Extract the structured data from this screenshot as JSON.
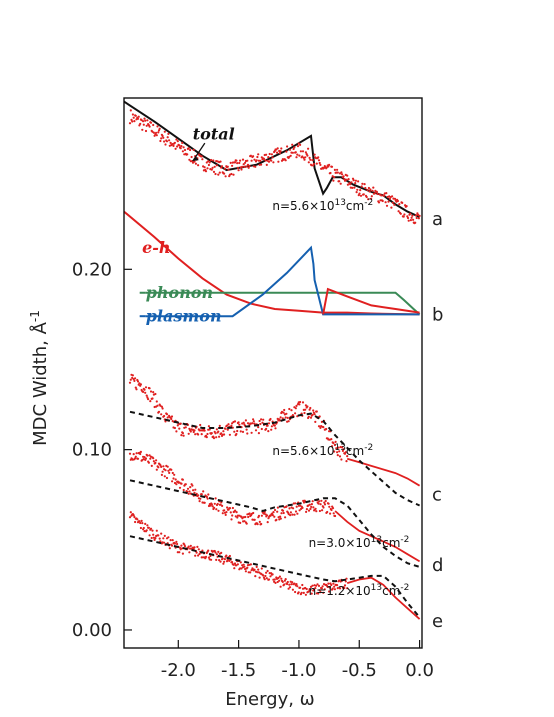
{
  "chart_data": {
    "type": "line",
    "xlabel": "Energy, ω",
    "ylabel": "MDC Width, Å",
    "ylabel_sup": "-1",
    "xlim": [
      -2.45,
      0.02
    ],
    "ylim": [
      -0.01,
      0.295
    ],
    "x_ticks": [
      -2.0,
      -1.5,
      -1.0,
      -0.5,
      0.0
    ],
    "x_tick_labels": [
      "-2.0",
      "-1.5",
      "-1.0",
      "-0.5",
      "0.0"
    ],
    "y_ticks": [
      0.0,
      0.1,
      0.2
    ],
    "y_tick_labels": [
      "0.00",
      "0.10",
      "0.20"
    ],
    "grid": false,
    "panels": [
      {
        "id": "a",
        "label": "a",
        "y": 0.228
      },
      {
        "id": "b",
        "label": "b",
        "y": 0.175
      },
      {
        "id": "c",
        "label": "c",
        "y": 0.075
      },
      {
        "id": "d",
        "label": "d",
        "y": 0.036
      },
      {
        "id": "e",
        "label": "e",
        "y": 0.005
      }
    ],
    "annotations": [
      {
        "id": "dens-a",
        "base": "n=5.6×10",
        "exp": "13",
        "unit": "cm",
        "unit_exp": "-2",
        "x": -1.22,
        "y": 0.233
      },
      {
        "id": "dens-c",
        "base": "n=5.6×10",
        "exp": "13",
        "unit": "cm",
        "unit_exp": "-2",
        "x": -1.22,
        "y": 0.097
      },
      {
        "id": "dens-d",
        "base": "n=3.0×10",
        "exp": "13",
        "unit": "cm",
        "unit_exp": "-2",
        "x": -0.92,
        "y": 0.046
      },
      {
        "id": "dens-e",
        "base": "n=1.2×10",
        "exp": "13",
        "unit": "cm",
        "unit_exp": "-2",
        "x": -0.92,
        "y": 0.0195
      }
    ],
    "series": [
      {
        "id": "total",
        "name": "total",
        "kind": "line",
        "color": "#111111",
        "label_pos": [
          -1.88,
          0.272
        ],
        "x": [
          -2.45,
          -2.2,
          -1.8,
          -1.6,
          -1.35,
          -1.1,
          -0.9,
          -0.87,
          -0.8,
          -0.77,
          -0.72,
          -0.65,
          -0.55,
          -0.4,
          -0.3,
          -0.2,
          -0.1,
          0.0
        ],
        "y": [
          0.293,
          0.282,
          0.263,
          0.255,
          0.258,
          0.266,
          0.274,
          0.256,
          0.242,
          0.245,
          0.251,
          0.251,
          0.247,
          0.243,
          0.241,
          0.236,
          0.232,
          0.229
        ]
      },
      {
        "id": "data-a",
        "name": "",
        "kind": "points",
        "color": "#e02020",
        "x": [
          -2.4,
          -2.2,
          -2.0,
          -1.8,
          -1.6,
          -1.4,
          -1.2,
          -1.0,
          -0.9,
          -0.8,
          -0.7,
          -0.6,
          -0.5,
          -0.4,
          -0.3,
          -0.2,
          -0.1,
          0.0
        ],
        "y": [
          0.285,
          0.277,
          0.268,
          0.259,
          0.255,
          0.259,
          0.263,
          0.266,
          0.262,
          0.256,
          0.252,
          0.249,
          0.245,
          0.242,
          0.24,
          0.236,
          0.231,
          0.228
        ],
        "noise": 0.004
      },
      {
        "id": "eh",
        "name": "e-h",
        "kind": "line",
        "color": "#e02020",
        "label_pos": [
          -2.3,
          0.209
        ],
        "x": [
          -2.45,
          -2.2,
          -2.0,
          -1.8,
          -1.6,
          -1.4,
          -1.2,
          -1.0,
          -0.8,
          -0.6,
          -0.4,
          -0.2,
          0.0
        ],
        "y": [
          0.232,
          0.218,
          0.206,
          0.195,
          0.186,
          0.181,
          0.178,
          0.177,
          0.176,
          0.176,
          0.1755,
          0.1752,
          0.175
        ]
      },
      {
        "id": "phonon",
        "name": "phonon",
        "kind": "line",
        "color": "#3a8a56",
        "label_pos": [
          -2.27,
          0.184
        ],
        "x": [
          -2.27,
          -0.2,
          -0.13,
          -0.05,
          0.0
        ],
        "y": [
          0.187,
          0.187,
          0.183,
          0.178,
          0.175
        ]
      },
      {
        "id": "plasmon",
        "name": "plasmon",
        "kind": "line",
        "color": "#1560b0",
        "label_pos": [
          -2.27,
          0.171
        ],
        "x": [
          -2.27,
          -1.55,
          -1.3,
          -1.1,
          -0.9,
          -0.88,
          -0.87,
          -0.8,
          -0.6,
          0.0
        ],
        "y": [
          0.174,
          0.174,
          0.186,
          0.198,
          0.212,
          0.203,
          0.194,
          0.175,
          0.175,
          0.175
        ]
      },
      {
        "id": "eh-jump",
        "name": "",
        "kind": "line",
        "color": "#e02020",
        "x": [
          -0.8,
          -0.76,
          -0.6,
          -0.4,
          -0.2,
          0.0
        ],
        "y": [
          0.175,
          0.189,
          0.185,
          0.18,
          0.178,
          0.176
        ]
      },
      {
        "id": "data-c",
        "name": "",
        "kind": "points+line",
        "color": "#e02020",
        "x": [
          -2.4,
          -2.3,
          -2.2,
          -2.1,
          -2.0,
          -1.9,
          -1.8,
          -1.7,
          -1.6,
          -1.5,
          -1.4,
          -1.3,
          -1.2,
          -1.1,
          -1.0,
          -0.9,
          -0.8,
          -0.7,
          -0.6,
          -0.5,
          -0.4,
          -0.3,
          -0.2,
          -0.1,
          0.0
        ],
        "y": [
          0.138,
          0.136,
          0.128,
          0.117,
          0.112,
          0.111,
          0.11,
          0.11,
          0.111,
          0.112,
          0.113,
          0.113,
          0.115,
          0.119,
          0.123,
          0.121,
          0.113,
          0.102,
          0.095,
          0.093,
          0.091,
          0.089,
          0.087,
          0.084,
          0.08
        ],
        "noise": 0.004,
        "line_from": -0.6
      },
      {
        "id": "model-c",
        "name": "",
        "kind": "dashed",
        "color": "#111111",
        "x": [
          -2.4,
          -2.2,
          -2.0,
          -1.8,
          -1.6,
          -1.4,
          -1.2,
          -1.0,
          -0.9,
          -0.8,
          -0.7,
          -0.6,
          -0.5,
          -0.4,
          -0.3,
          -0.2,
          -0.1,
          0.0
        ],
        "y": [
          0.121,
          0.118,
          0.115,
          0.112,
          0.112,
          0.113,
          0.115,
          0.119,
          0.12,
          0.116,
          0.108,
          0.101,
          0.094,
          0.088,
          0.082,
          0.076,
          0.072,
          0.069
        ]
      },
      {
        "id": "data-d",
        "name": "",
        "kind": "points+line",
        "color": "#e02020",
        "x": [
          -2.4,
          -2.3,
          -2.2,
          -2.1,
          -2.0,
          -1.9,
          -1.8,
          -1.7,
          -1.6,
          -1.5,
          -1.4,
          -1.3,
          -1.2,
          -1.1,
          -1.0,
          -0.9,
          -0.8,
          -0.7,
          -0.6,
          -0.5,
          -0.4,
          -0.3,
          -0.2,
          -0.1,
          0.0
        ],
        "y": [
          0.098,
          0.096,
          0.092,
          0.088,
          0.083,
          0.078,
          0.074,
          0.07,
          0.066,
          0.063,
          0.062,
          0.062,
          0.064,
          0.066,
          0.068,
          0.069,
          0.069,
          0.066,
          0.06,
          0.055,
          0.052,
          0.049,
          0.046,
          0.042,
          0.038
        ],
        "noise": 0.0035,
        "line_from": -0.7
      },
      {
        "id": "model-d",
        "name": "",
        "kind": "dashed",
        "color": "#111111",
        "x": [
          -2.4,
          -2.2,
          -2.0,
          -1.8,
          -1.6,
          -1.4,
          -1.3,
          -1.2,
          -1.0,
          -0.8,
          -0.7,
          -0.6,
          -0.5,
          -0.4,
          -0.3,
          -0.2,
          -0.1,
          0.0
        ],
        "y": [
          0.083,
          0.08,
          0.077,
          0.074,
          0.071,
          0.068,
          0.066,
          0.068,
          0.07,
          0.073,
          0.073,
          0.069,
          0.061,
          0.053,
          0.046,
          0.041,
          0.037,
          0.035
        ]
      },
      {
        "id": "data-e",
        "name": "",
        "kind": "points+line",
        "color": "#e02020",
        "x": [
          -2.4,
          -2.3,
          -2.2,
          -2.1,
          -2.0,
          -1.9,
          -1.8,
          -1.7,
          -1.6,
          -1.5,
          -1.4,
          -1.3,
          -1.2,
          -1.1,
          -1.0,
          -0.9,
          -0.8,
          -0.7,
          -0.6,
          -0.5,
          -0.4,
          -0.3,
          -0.2,
          -0.1,
          0.0
        ],
        "y": [
          0.063,
          0.058,
          0.053,
          0.049,
          0.046,
          0.044,
          0.043,
          0.041,
          0.039,
          0.036,
          0.034,
          0.031,
          0.028,
          0.025,
          0.023,
          0.022,
          0.023,
          0.024,
          0.026,
          0.028,
          0.029,
          0.025,
          0.018,
          0.012,
          0.006
        ],
        "noise": 0.003,
        "line_from": -0.6
      },
      {
        "id": "model-e",
        "name": "",
        "kind": "dashed",
        "color": "#111111",
        "x": [
          -2.4,
          -2.2,
          -2.0,
          -1.8,
          -1.6,
          -1.4,
          -1.2,
          -1.0,
          -0.8,
          -0.7,
          -0.6,
          -0.5,
          -0.4,
          -0.3,
          -0.2,
          -0.1,
          0.0
        ],
        "y": [
          0.052,
          0.049,
          0.046,
          0.043,
          0.04,
          0.037,
          0.034,
          0.031,
          0.028,
          0.027,
          0.028,
          0.029,
          0.03,
          0.03,
          0.024,
          0.015,
          0.007
        ]
      }
    ]
  }
}
